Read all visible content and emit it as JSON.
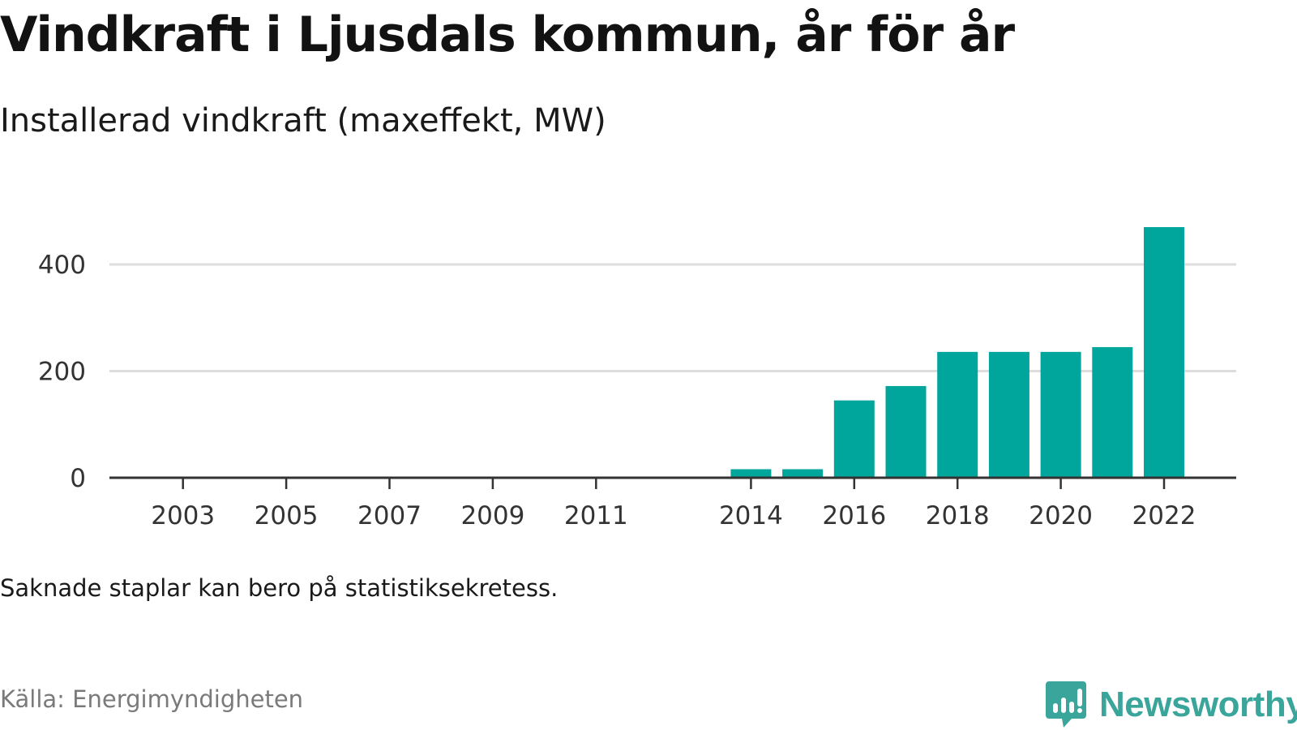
{
  "header": {
    "title": "Vindkraft i Ljusdals kommun, år för år",
    "subtitle": "Installerad vindkraft (maxeffekt, MW)"
  },
  "footer": {
    "note": "Saknade staplar kan bero på statistiksekretess.",
    "source": "Källa: Energimyndigheten",
    "brand": "Newsworthy",
    "brand_icon": "newsworthy-logo-icon"
  },
  "colors": {
    "bar": "#00a59b",
    "grid": "#dddddd",
    "axis": "#333333",
    "brand": "#3aa59b"
  },
  "chart_data": {
    "type": "bar",
    "title": "Vindkraft i Ljusdals kommun, år för år",
    "subtitle": "Installerad vindkraft (maxeffekt, MW)",
    "xlabel": "",
    "ylabel": "",
    "ylim": [
      0,
      470
    ],
    "yticks": [
      0,
      200,
      400
    ],
    "grid": true,
    "xtick_labels": [
      "2003",
      "2005",
      "2007",
      "2009",
      "2011",
      "2014",
      "2016",
      "2018",
      "2020",
      "2022"
    ],
    "categories": [
      "2002",
      "2003",
      "2004",
      "2005",
      "2006",
      "2007",
      "2008",
      "2009",
      "2010",
      "2011",
      "2012",
      "2013",
      "2014",
      "2015",
      "2016",
      "2017",
      "2018",
      "2019",
      "2020",
      "2021",
      "2022"
    ],
    "values": [
      0,
      0,
      0,
      0,
      0,
      0,
      0,
      0,
      0,
      0,
      null,
      null,
      16,
      16,
      145,
      172,
      236,
      236,
      236,
      245,
      470
    ]
  }
}
